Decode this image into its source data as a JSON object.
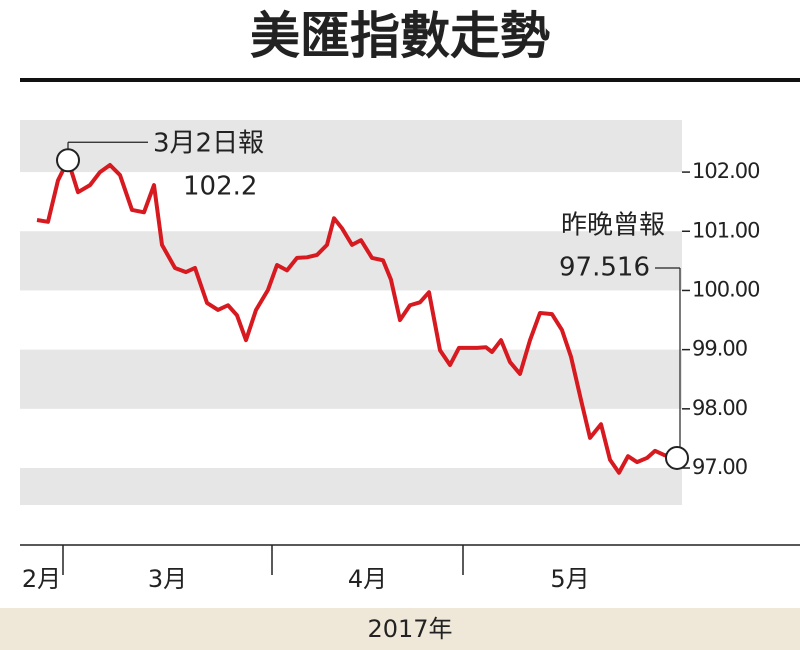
{
  "chart_data": {
    "type": "line",
    "title": "美匯指數走勢",
    "xlabel": "2017年",
    "months": [
      "2月",
      "3月",
      "4月",
      "5月"
    ],
    "month_boundaries": [
      2.6,
      23.5,
      42.6
    ],
    "xlim": [
      -1.7,
      76.3
    ],
    "x": [
      0,
      1.1,
      2.1,
      3.1,
      4.1,
      5.3,
      6.3,
      7.3,
      8.3,
      9.5,
      10.7,
      11.7,
      12.5,
      13.8,
      14.9,
      15.8,
      17.0,
      18.1,
      19.1,
      20.0,
      20.9,
      21.9,
      23.1,
      24.0,
      25.0,
      26.0,
      27.0,
      28.0,
      29.0,
      29.7,
      30.5,
      31.5,
      32.4,
      33.5,
      34.6,
      35.4,
      36.3,
      37.3,
      38.3,
      39.2,
      40.3,
      41.3,
      42.2,
      43.1,
      44.0,
      44.9,
      45.5,
      46.4,
      47.3,
      48.3,
      49.3,
      50.3,
      51.5,
      52.5,
      53.4,
      54.4,
      55.3,
      56.4,
      57.3,
      58.2,
      59.1,
      60.0,
      61.0,
      61.8,
      62.7,
      64.0
    ],
    "series": [
      {
        "color": "#d71920",
        "values": [
          101.19,
          101.16,
          101.86,
          102.2,
          101.66,
          101.78,
          102.0,
          102.12,
          101.95,
          101.36,
          101.32,
          101.78,
          100.77,
          100.38,
          100.31,
          100.38,
          99.79,
          99.67,
          99.75,
          99.58,
          99.16,
          99.67,
          100.01,
          100.43,
          100.34,
          100.55,
          100.56,
          100.6,
          100.77,
          101.22,
          101.05,
          100.77,
          100.85,
          100.55,
          100.51,
          100.18,
          99.5,
          99.75,
          99.8,
          99.97,
          98.99,
          98.74,
          99.03,
          99.03,
          99.03,
          99.04,
          98.96,
          99.16,
          98.79,
          98.59,
          99.16,
          99.62,
          99.6,
          99.33,
          98.88,
          98.15,
          97.51,
          97.74,
          97.14,
          96.92,
          97.2,
          97.1,
          97.17,
          97.29,
          97.22,
          97.17
        ]
      }
    ],
    "annotations": [
      {
        "index": 3,
        "lines": [
          "3月2日報",
          "102.2"
        ]
      },
      {
        "index": 65,
        "lines": [
          "昨晚曾報",
          "97.516"
        ]
      }
    ],
    "ylim": [
      96.375,
      102.88
    ],
    "yticks": [
      {
        "value": 97,
        "label": "97.00"
      },
      {
        "value": 98,
        "label": "98.00"
      },
      {
        "value": 99,
        "label": "99.00"
      },
      {
        "value": 100,
        "label": "100.00"
      },
      {
        "value": 101,
        "label": "101.00"
      },
      {
        "value": 102,
        "label": "102.00"
      }
    ],
    "grid": "bands"
  }
}
